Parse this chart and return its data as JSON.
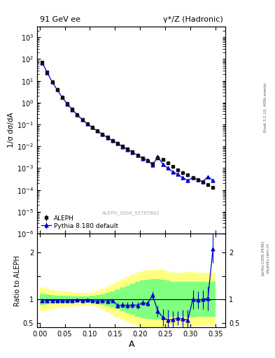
{
  "title_left": "91 GeV ee",
  "title_right": "γ*/Z (Hadronic)",
  "ylabel_main": "1/σ dσ/dA",
  "ylabel_ratio": "Ratio to ALEPH",
  "xlabel": "A",
  "watermark": "ALEPH_2004_S5765862",
  "right_label_top": "Rivet 3.1.10, 400k events",
  "right_label_bot1": "mcplots.cern.ch",
  "right_label_bot2": "[arXiv:1306.3436]",
  "ylim_main": [
    1e-06,
    3000.0
  ],
  "ylim_ratio": [
    0.4,
    2.4
  ],
  "xlim": [
    -0.005,
    0.37
  ],
  "aleph_x": [
    0.005,
    0.015,
    0.025,
    0.035,
    0.045,
    0.055,
    0.065,
    0.075,
    0.085,
    0.095,
    0.105,
    0.115,
    0.125,
    0.135,
    0.145,
    0.155,
    0.165,
    0.175,
    0.185,
    0.195,
    0.205,
    0.215,
    0.225,
    0.235,
    0.245,
    0.255,
    0.265,
    0.275,
    0.285,
    0.295,
    0.305,
    0.315,
    0.325,
    0.335,
    0.345
  ],
  "aleph_y": [
    70.0,
    25.0,
    9.0,
    4.0,
    1.8,
    0.9,
    0.5,
    0.28,
    0.17,
    0.11,
    0.075,
    0.052,
    0.037,
    0.026,
    0.019,
    0.014,
    0.01,
    0.0075,
    0.0055,
    0.004,
    0.003,
    0.0022,
    0.0016,
    0.003,
    0.0025,
    0.0018,
    0.0012,
    0.00085,
    0.00062,
    0.00048,
    0.00038,
    0.0003,
    0.00024,
    0.00018,
    0.00013
  ],
  "aleph_yerr": [
    5.0,
    1.5,
    0.6,
    0.25,
    0.1,
    0.05,
    0.025,
    0.015,
    0.009,
    0.006,
    0.004,
    0.003,
    0.002,
    0.0015,
    0.001,
    0.0008,
    0.0006,
    0.0004,
    0.0003,
    0.00025,
    0.0002,
    0.00015,
    0.00012,
    0.0002,
    0.00018,
    0.00013,
    9e-05,
    7e-05,
    6e-05,
    5e-05,
    4e-05,
    3.5e-05,
    3e-05,
    2.5e-05,
    2e-05
  ],
  "pythia_x": [
    0.005,
    0.015,
    0.025,
    0.035,
    0.045,
    0.055,
    0.065,
    0.075,
    0.085,
    0.095,
    0.105,
    0.115,
    0.125,
    0.135,
    0.145,
    0.155,
    0.165,
    0.175,
    0.185,
    0.195,
    0.205,
    0.215,
    0.225,
    0.235,
    0.245,
    0.255,
    0.265,
    0.275,
    0.285,
    0.295,
    0.305,
    0.315,
    0.325,
    0.335,
    0.345
  ],
  "pythia_y": [
    68.0,
    24.5,
    8.8,
    3.9,
    1.75,
    0.87,
    0.49,
    0.275,
    0.166,
    0.108,
    0.073,
    0.05,
    0.036,
    0.025,
    0.0185,
    0.0136,
    0.0098,
    0.0073,
    0.0054,
    0.0039,
    0.0028,
    0.0024,
    0.00135,
    0.0034,
    0.00155,
    0.001,
    0.000685,
    0.000515,
    0.00036,
    0.00027,
    0.00038,
    0.000295,
    0.00024,
    0.00041,
    0.00027
  ],
  "pythia_yerr": [
    3.0,
    1.0,
    0.4,
    0.18,
    0.08,
    0.04,
    0.02,
    0.012,
    0.007,
    0.005,
    0.003,
    0.002,
    0.0015,
    0.0012,
    0.0009,
    0.0007,
    0.0005,
    0.00035,
    0.00025,
    0.0002,
    0.00015,
    0.00012,
    0.0001,
    0.00018,
    0.00012,
    8e-05,
    6e-05,
    5e-05,
    4.5e-05,
    4e-05,
    4.5e-05,
    3.8e-05,
    3.2e-05,
    4.8e-05,
    3.5e-05
  ],
  "ratio_y": [
    0.97,
    0.98,
    0.978,
    0.975,
    0.972,
    0.967,
    0.98,
    0.982,
    0.976,
    0.982,
    0.973,
    0.962,
    0.973,
    0.962,
    0.975,
    0.871,
    0.88,
    0.873,
    0.882,
    0.875,
    0.933,
    0.91,
    1.092,
    0.75,
    0.62,
    0.56,
    0.57,
    0.606,
    0.58,
    0.563,
    1.0,
    0.983,
    1.0,
    1.02,
    2.08
  ],
  "ratio_yerr": [
    0.04,
    0.03,
    0.025,
    0.022,
    0.02,
    0.019,
    0.018,
    0.017,
    0.016,
    0.016,
    0.016,
    0.016,
    0.017,
    0.018,
    0.02,
    0.055,
    0.06,
    0.065,
    0.07,
    0.075,
    0.05,
    0.06,
    0.08,
    0.12,
    0.18,
    0.22,
    0.18,
    0.15,
    0.2,
    0.22,
    0.2,
    0.18,
    0.2,
    0.25,
    0.3
  ],
  "yellow_band_lo": [
    0.75,
    0.78,
    0.8,
    0.82,
    0.83,
    0.84,
    0.85,
    0.86,
    0.87,
    0.87,
    0.85,
    0.82,
    0.78,
    0.73,
    0.68,
    0.62,
    0.57,
    0.52,
    0.47,
    0.43,
    0.4,
    0.38,
    0.37,
    0.37,
    0.38,
    0.4,
    0.43,
    0.43,
    0.43,
    0.42,
    0.42,
    0.43,
    0.43,
    0.43,
    0.43
  ],
  "yellow_band_hi": [
    1.25,
    1.22,
    1.2,
    1.18,
    1.17,
    1.16,
    1.15,
    1.14,
    1.13,
    1.13,
    1.15,
    1.18,
    1.22,
    1.27,
    1.32,
    1.38,
    1.43,
    1.48,
    1.53,
    1.57,
    1.6,
    1.62,
    1.63,
    1.63,
    1.62,
    1.6,
    1.57,
    1.57,
    1.57,
    1.58,
    1.58,
    1.57,
    1.57,
    1.57,
    1.57
  ],
  "green_band_lo": [
    0.88,
    0.9,
    0.91,
    0.92,
    0.925,
    0.93,
    0.935,
    0.94,
    0.94,
    0.935,
    0.925,
    0.91,
    0.89,
    0.86,
    0.83,
    0.79,
    0.75,
    0.71,
    0.67,
    0.63,
    0.6,
    0.58,
    0.57,
    0.57,
    0.58,
    0.6,
    0.63,
    0.63,
    0.63,
    0.62,
    0.62,
    0.63,
    0.63,
    0.63,
    0.63
  ],
  "green_band_hi": [
    1.12,
    1.1,
    1.09,
    1.08,
    1.075,
    1.07,
    1.065,
    1.06,
    1.06,
    1.065,
    1.075,
    1.09,
    1.11,
    1.14,
    1.17,
    1.21,
    1.25,
    1.29,
    1.33,
    1.37,
    1.4,
    1.42,
    1.43,
    1.43,
    1.42,
    1.4,
    1.37,
    1.37,
    1.37,
    1.38,
    1.38,
    1.37,
    1.37,
    1.37,
    1.37
  ],
  "bin_width": 0.01,
  "aleph_color": "#111111",
  "pythia_color": "#0000cc",
  "bg_color": "#ffffff",
  "yellow_color": "#ffff80",
  "green_color": "#80ff80",
  "legend_aleph": "ALEPH",
  "legend_pythia": "Pythia 8.180 default"
}
